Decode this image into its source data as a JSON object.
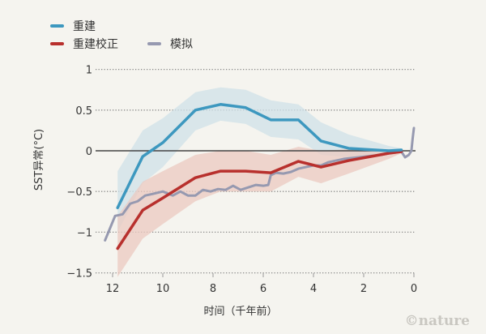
{
  "chart_data": {
    "type": "line",
    "title": "",
    "xlabel": "时间（千年前）",
    "ylabel": "SST异常(°C)",
    "xlim": [
      12.5,
      0
    ],
    "ylim": [
      -1.5,
      1
    ],
    "x_ticks": [
      "12",
      "10",
      "8",
      "6",
      "4",
      "2",
      "0"
    ],
    "x_tick_values": [
      12,
      10,
      8,
      6,
      4,
      2,
      0
    ],
    "y_ticks": [
      "1",
      "0.5",
      "0",
      "-0.5",
      "-1",
      "-1.5"
    ],
    "y_tick_values": [
      1,
      0.5,
      0,
      -0.5,
      -1,
      -1.5
    ],
    "legend_position": "top-left",
    "series": [
      {
        "name": "重建",
        "color": "#3d98bf",
        "band_color": "#cfe1e8",
        "x": [
          11.8,
          10.8,
          10.0,
          8.7,
          7.7,
          6.7,
          5.7,
          4.6,
          3.7,
          2.6,
          1.0,
          0.5
        ],
        "values": [
          -0.7,
          -0.07,
          0.1,
          0.5,
          0.57,
          0.53,
          0.38,
          0.38,
          0.12,
          0.03,
          0.0,
          0.01
        ],
        "band_upper": [
          -0.25,
          0.25,
          0.4,
          0.72,
          0.78,
          0.75,
          0.62,
          0.57,
          0.35,
          0.2,
          0.06,
          0.03
        ],
        "band_lower": [
          -1.0,
          -0.4,
          -0.2,
          0.25,
          0.37,
          0.33,
          0.17,
          0.14,
          -0.05,
          -0.08,
          -0.03,
          -0.01
        ]
      },
      {
        "name": "重建校正",
        "color": "#b8302d",
        "band_color": "#ebc9c0",
        "x": [
          11.8,
          10.8,
          10.0,
          8.7,
          7.7,
          6.7,
          5.7,
          4.6,
          3.7,
          2.6,
          1.0,
          0.5
        ],
        "values": [
          -1.2,
          -0.73,
          -0.58,
          -0.33,
          -0.25,
          -0.25,
          -0.27,
          -0.13,
          -0.2,
          -0.12,
          -0.03,
          -0.01
        ],
        "band_upper": [
          -0.8,
          -0.38,
          -0.25,
          -0.05,
          0.0,
          0.0,
          -0.05,
          0.05,
          0.0,
          0.02,
          0.02,
          0.01
        ],
        "band_lower": [
          -1.55,
          -1.08,
          -0.9,
          -0.62,
          -0.5,
          -0.5,
          -0.5,
          -0.32,
          -0.4,
          -0.28,
          -0.1,
          -0.03
        ]
      },
      {
        "name": "模拟",
        "color": "#9699b0",
        "x": [
          12.3,
          12.1,
          11.9,
          11.6,
          11.3,
          11.0,
          10.7,
          10.4,
          10.0,
          9.6,
          9.3,
          9.0,
          8.7,
          8.4,
          8.1,
          7.8,
          7.5,
          7.2,
          6.9,
          6.6,
          6.3,
          6.0,
          5.8,
          5.7,
          5.5,
          5.2,
          4.9,
          4.6,
          4.3,
          4.0,
          3.7,
          3.4,
          3.1,
          2.8,
          2.5,
          2.2,
          1.9,
          1.6,
          1.3,
          1.0,
          0.7,
          0.5,
          0.35,
          0.2,
          0.1,
          0.05,
          0.0
        ],
        "values": [
          -1.1,
          -0.95,
          -0.8,
          -0.78,
          -0.65,
          -0.62,
          -0.55,
          -0.53,
          -0.5,
          -0.55,
          -0.5,
          -0.55,
          -0.55,
          -0.48,
          -0.5,
          -0.47,
          -0.48,
          -0.43,
          -0.48,
          -0.45,
          -0.42,
          -0.43,
          -0.42,
          -0.3,
          -0.27,
          -0.28,
          -0.26,
          -0.22,
          -0.2,
          -0.18,
          -0.18,
          -0.14,
          -0.12,
          -0.1,
          -0.09,
          -0.08,
          -0.07,
          -0.06,
          -0.05,
          -0.03,
          -0.02,
          -0.01,
          -0.08,
          -0.05,
          0.0,
          0.15,
          0.28
        ]
      }
    ]
  },
  "credit": "©nature"
}
